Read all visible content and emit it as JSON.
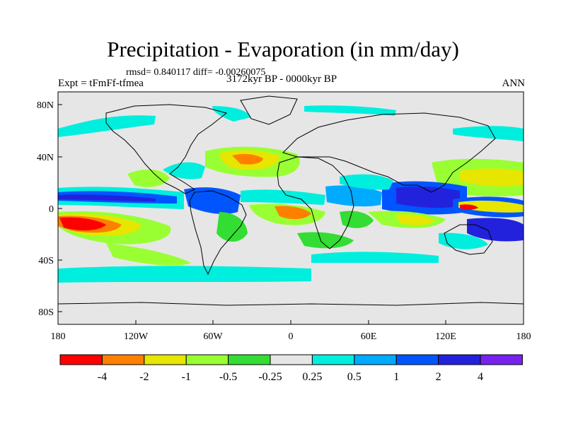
{
  "title": "Precipitation - Evaporation (in mm/day)",
  "stats": "rmsd= 0.840117  diff= -0.00260075",
  "experiment": "Expt = tFmFf-tfmea",
  "period": "3172kyr BP - 0000kyr BP",
  "season": "ANN",
  "lat_ticks": [
    "80N",
    "40N",
    "0",
    "40S",
    "80S"
  ],
  "lon_ticks": [
    "180",
    "120W",
    "60W",
    "0",
    "60E",
    "120E",
    "180"
  ],
  "colorbar": {
    "colors": [
      "#ff0000",
      "#ff8000",
      "#e6e600",
      "#99ff33",
      "#33dd33",
      "#e6e6e6",
      "#00eedd",
      "#00aaff",
      "#0055ff",
      "#2222dd",
      "#7722ee"
    ],
    "labels": [
      "-4",
      "-2",
      "-1",
      "-0.5",
      "-0.25",
      "0.25",
      "0.5",
      "1",
      "2",
      "4"
    ]
  },
  "map_data": {
    "units": "mm/day",
    "background_value_color": "#e6e6e6",
    "lon_range": [
      -180,
      180
    ],
    "lat_range": [
      -90,
      90
    ]
  }
}
